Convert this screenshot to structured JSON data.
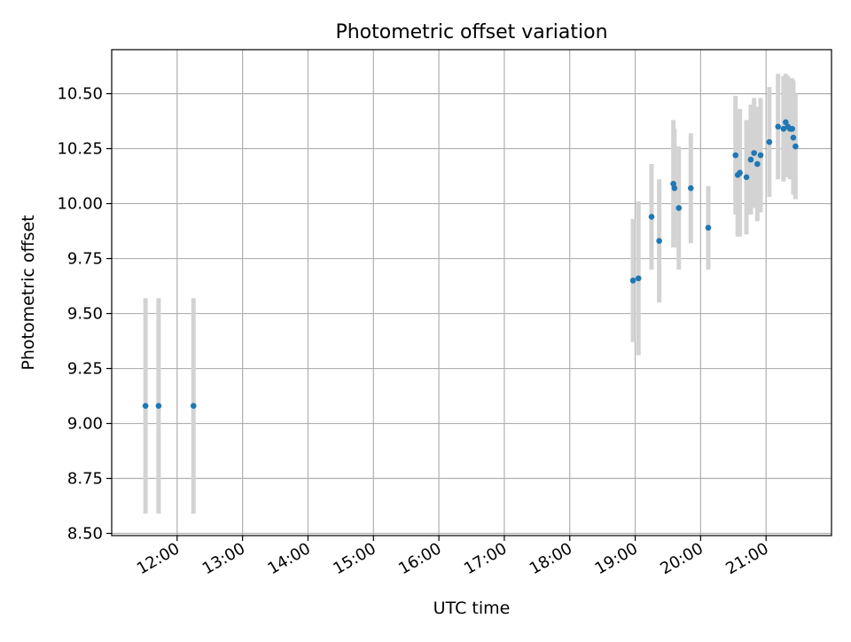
{
  "chart_data": {
    "type": "scatter",
    "title": "Photometric offset variation",
    "xlabel": "UTC time",
    "ylabel": "Photometric offset",
    "x_axis_type": "time",
    "xlim": [
      "11:00",
      "22:00"
    ],
    "ylim": [
      8.49,
      10.7
    ],
    "xticks": [
      "12:00",
      "13:00",
      "14:00",
      "15:00",
      "16:00",
      "17:00",
      "18:00",
      "19:00",
      "20:00",
      "21:00"
    ],
    "yticks": [
      "8.50",
      "8.75",
      "9.00",
      "9.25",
      "9.50",
      "9.75",
      "10.00",
      "10.25",
      "10.50"
    ],
    "grid": true,
    "point_color": "#1f77b4",
    "errorbar_color": "#d3d3d3",
    "points": [
      {
        "x": "11:31",
        "y": 9.08,
        "yerr": 0.49
      },
      {
        "x": "11:43",
        "y": 9.08,
        "yerr": 0.49
      },
      {
        "x": "12:15",
        "y": 9.08,
        "yerr": 0.49
      },
      {
        "x": "18:58",
        "y": 9.65,
        "yerr": 0.28
      },
      {
        "x": "19:03",
        "y": 9.66,
        "yerr": 0.35
      },
      {
        "x": "19:15",
        "y": 9.94,
        "yerr": 0.24
      },
      {
        "x": "19:22",
        "y": 9.83,
        "yerr": 0.28
      },
      {
        "x": "19:35",
        "y": 10.09,
        "yerr": 0.29
      },
      {
        "x": "19:36",
        "y": 10.07,
        "yerr": 0.27
      },
      {
        "x": "19:40",
        "y": 9.98,
        "yerr": 0.28
      },
      {
        "x": "19:51",
        "y": 10.07,
        "yerr": 0.25
      },
      {
        "x": "20:07",
        "y": 9.89,
        "yerr": 0.19
      },
      {
        "x": "20:32",
        "y": 10.22,
        "yerr": 0.27
      },
      {
        "x": "20:34",
        "y": 10.13,
        "yerr": 0.28
      },
      {
        "x": "20:36",
        "y": 10.14,
        "yerr": 0.29
      },
      {
        "x": "20:42",
        "y": 10.12,
        "yerr": 0.26
      },
      {
        "x": "20:46",
        "y": 10.2,
        "yerr": 0.25
      },
      {
        "x": "20:49",
        "y": 10.23,
        "yerr": 0.25
      },
      {
        "x": "20:52",
        "y": 10.18,
        "yerr": 0.26
      },
      {
        "x": "20:55",
        "y": 10.22,
        "yerr": 0.26
      },
      {
        "x": "21:03",
        "y": 10.28,
        "yerr": 0.25
      },
      {
        "x": "21:11",
        "y": 10.35,
        "yerr": 0.24
      },
      {
        "x": "21:16",
        "y": 10.34,
        "yerr": 0.24
      },
      {
        "x": "21:18",
        "y": 10.37,
        "yerr": 0.22
      },
      {
        "x": "21:20",
        "y": 10.35,
        "yerr": 0.23
      },
      {
        "x": "21:22",
        "y": 10.34,
        "yerr": 0.23
      },
      {
        "x": "21:24",
        "y": 10.34,
        "yerr": 0.23
      },
      {
        "x": "21:25",
        "y": 10.3,
        "yerr": 0.26
      },
      {
        "x": "21:27",
        "y": 10.26,
        "yerr": 0.24
      }
    ]
  }
}
